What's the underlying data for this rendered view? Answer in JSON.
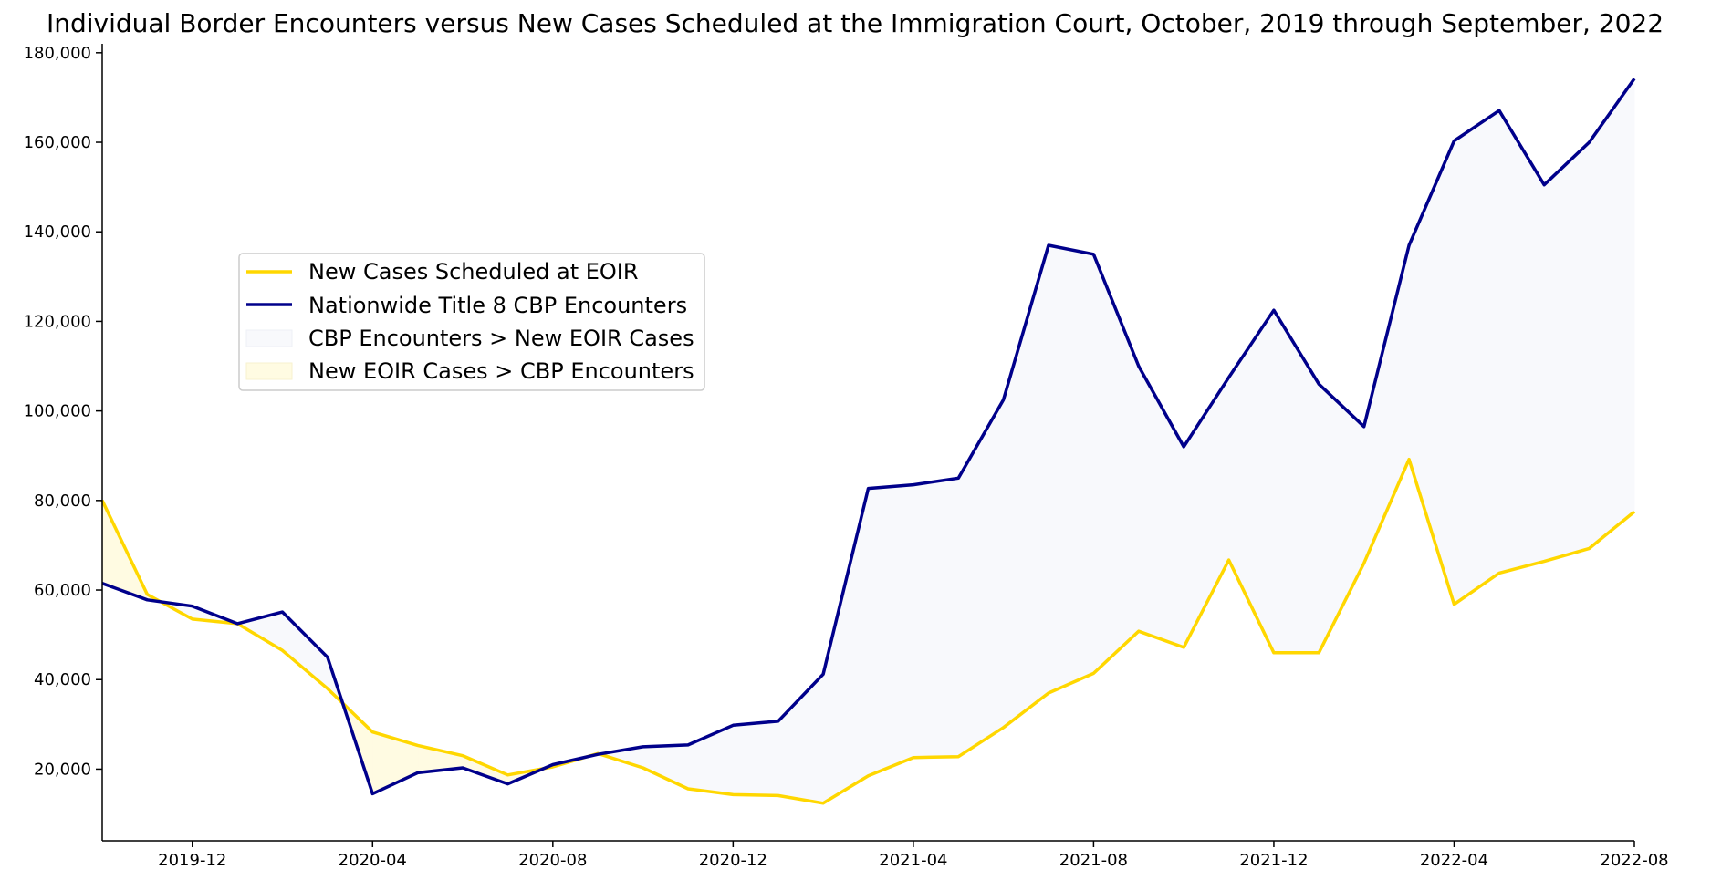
{
  "chart_data": {
    "type": "line",
    "title": "Individual Border Encounters versus New Cases Scheduled at the Immigration Court, October, 2019 through September, 2022",
    "xlabel": "",
    "ylabel": "",
    "x": [
      "2019-10",
      "2019-11",
      "2019-12",
      "2020-01",
      "2020-02",
      "2020-03",
      "2020-04",
      "2020-05",
      "2020-06",
      "2020-07",
      "2020-08",
      "2020-09",
      "2020-10",
      "2020-11",
      "2020-12",
      "2021-01",
      "2021-02",
      "2021-03",
      "2021-04",
      "2021-05",
      "2021-06",
      "2021-07",
      "2021-08",
      "2021-09",
      "2021-10",
      "2021-11",
      "2021-12",
      "2022-01",
      "2022-02",
      "2022-03",
      "2022-04",
      "2022-05",
      "2022-06",
      "2022-07",
      "2022-08"
    ],
    "xlim": [
      "2019-10",
      "2022-08"
    ],
    "ylim": [
      4000,
      182000
    ],
    "x_ticks": [
      "2019-12",
      "2020-04",
      "2020-08",
      "2020-12",
      "2021-04",
      "2021-08",
      "2021-12",
      "2022-04",
      "2022-08"
    ],
    "y_ticks": [
      "20,000",
      "40,000",
      "60,000",
      "80,000",
      "100,000",
      "120,000",
      "140,000",
      "160,000",
      "180,000"
    ],
    "y_tick_values": [
      20000,
      40000,
      60000,
      80000,
      100000,
      120000,
      140000,
      160000,
      180000
    ],
    "series": [
      {
        "name": "New Cases Scheduled at EOIR",
        "color": "#FFD700",
        "values": [
          80000,
          59000,
          53500,
          52500,
          46500,
          38000,
          28300,
          25300,
          23000,
          18700,
          20500,
          23500,
          20300,
          15600,
          14300,
          14100,
          12400,
          18500,
          22600,
          22800,
          29300,
          37000,
          41400,
          50800,
          47200,
          66700,
          46000,
          46000,
          66000,
          89200,
          56800,
          63800,
          66400,
          69300,
          77500
        ]
      },
      {
        "name": "Nationwide Title 8 CBP Encounters",
        "color": "#00008B",
        "values": [
          61500,
          57800,
          56400,
          52500,
          55100,
          45000,
          14500,
          19200,
          20300,
          16700,
          21000,
          23300,
          25000,
          25400,
          29800,
          30700,
          41200,
          82700,
          83500,
          85000,
          102500,
          137000,
          135000,
          110000,
          92000,
          107500,
          122500,
          106000,
          96500,
          137000,
          160300,
          167100,
          150500,
          160000,
          174200
        ]
      }
    ],
    "fills": [
      {
        "name": "CBP Encounters > New EOIR Cases",
        "color": "#F8F9FC"
      },
      {
        "name": "New EOIR Cases > CBP Encounters",
        "color": "#FFFBE2"
      }
    ],
    "legend": "center-left",
    "grid": false
  }
}
